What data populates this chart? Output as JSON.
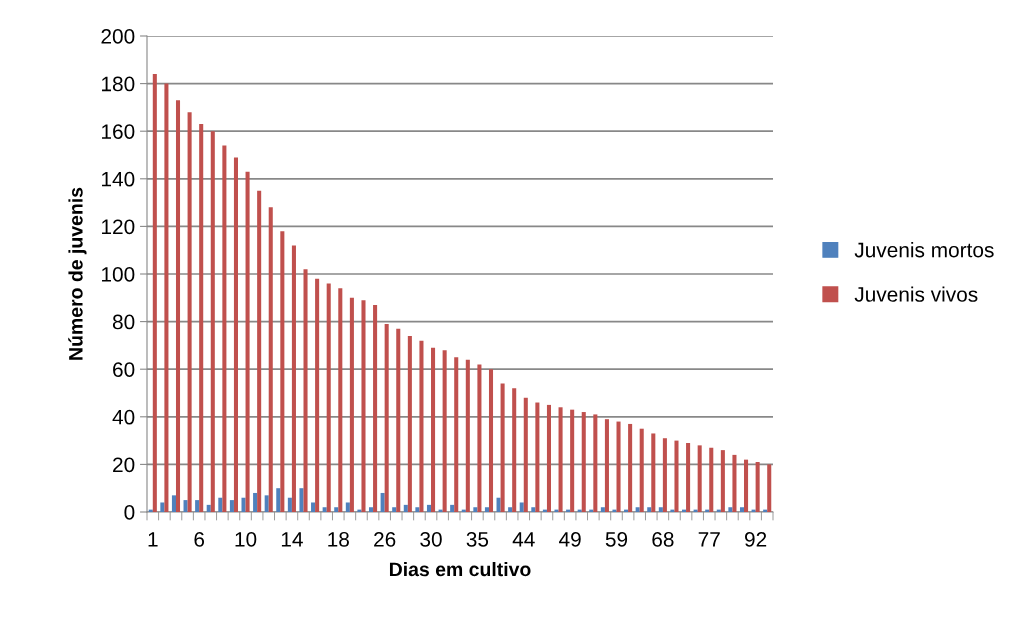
{
  "chart_data": {
    "type": "bar",
    "xlabel": "Dias em cultivo",
    "ylabel": "Número de juvenis",
    "categories": [
      "1",
      null,
      null,
      null,
      "6",
      null,
      null,
      null,
      "10",
      null,
      null,
      null,
      "14",
      null,
      null,
      null,
      "18",
      null,
      null,
      null,
      "26",
      null,
      null,
      null,
      "30",
      null,
      null,
      null,
      "35",
      null,
      null,
      null,
      "44",
      null,
      null,
      null,
      "49",
      null,
      null,
      null,
      "59",
      null,
      null,
      null,
      "68",
      null,
      null,
      null,
      "77",
      null,
      null,
      null,
      "92",
      null
    ],
    "series": [
      {
        "name": "Juvenis mortos",
        "color": "#4f81bd",
        "values": [
          1,
          4,
          7,
          5,
          5,
          3,
          6,
          5,
          6,
          8,
          7,
          10,
          6,
          10,
          4,
          2,
          2,
          4,
          1,
          2,
          8,
          2,
          3,
          2,
          3,
          1,
          3,
          1,
          2,
          2,
          6,
          2,
          4,
          2,
          1,
          1,
          1,
          1,
          1,
          2,
          1,
          1,
          2,
          2,
          2,
          1,
          1,
          1,
          1,
          1,
          2,
          2,
          1,
          1
        ]
      },
      {
        "name": "Juvenis vivos",
        "color": "#c0504d",
        "values": [
          184,
          180,
          173,
          168,
          163,
          160,
          154,
          149,
          143,
          135,
          128,
          118,
          112,
          102,
          98,
          96,
          94,
          90,
          89,
          87,
          79,
          77,
          74,
          72,
          69,
          68,
          65,
          64,
          62,
          60,
          54,
          52,
          48,
          46,
          45,
          44,
          43,
          42,
          41,
          39,
          38,
          37,
          35,
          33,
          31,
          30,
          29,
          28,
          27,
          26,
          24,
          22,
          21,
          20
        ]
      }
    ],
    "ylim": [
      0,
      200
    ],
    "yticks": [
      0,
      20,
      40,
      60,
      80,
      100,
      120,
      140,
      160,
      180,
      200
    ],
    "grid": "y",
    "legend": "right"
  }
}
